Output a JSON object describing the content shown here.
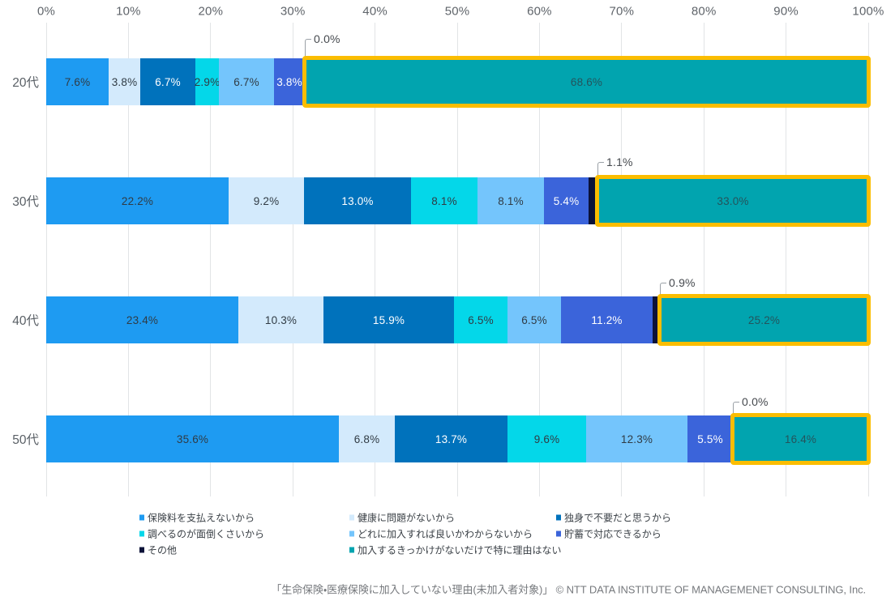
{
  "chart_data": {
    "type": "bar",
    "stacked": true,
    "orientation": "horizontal",
    "unit": "%",
    "categories": [
      "20代",
      "30代",
      "40代",
      "50代"
    ],
    "series": [
      {
        "name": "保険料を支払えないから",
        "color": "#1e9bf2",
        "label_style": "dark",
        "values": [
          7.6,
          22.2,
          23.4,
          35.6
        ]
      },
      {
        "name": "健康に問題がないから",
        "color": "#d3eafc",
        "label_style": "dark",
        "values": [
          3.8,
          9.2,
          10.3,
          6.8
        ]
      },
      {
        "name": "独身で不要だと思うから",
        "color": "#0072bc",
        "label_style": "white",
        "values": [
          6.7,
          13.0,
          15.9,
          13.7
        ]
      },
      {
        "name": "調べるのが面倒くさいから",
        "color": "#04d7e9",
        "label_style": "dark",
        "values": [
          2.9,
          8.1,
          6.5,
          9.6
        ]
      },
      {
        "name": "どれに加入すれば良いかわからないから",
        "color": "#74c5fc",
        "label_style": "dark",
        "values": [
          6.7,
          8.1,
          6.5,
          12.3
        ]
      },
      {
        "name": "貯蓄で対応できるから",
        "color": "#3b64da",
        "label_style": "white",
        "values": [
          3.8,
          5.4,
          11.2,
          5.5
        ]
      },
      {
        "name": "その他",
        "color": "#0b1238",
        "label_style": "none",
        "values": [
          0.0,
          1.1,
          0.9,
          0.0
        ]
      },
      {
        "name": "加入するきっかけがないだけで特に理由はない",
        "color": "#01a4af",
        "label_style": "teal",
        "values": [
          68.6,
          33.0,
          25.2,
          16.4
        ],
        "highlighted": true
      }
    ],
    "x_axis": {
      "min": 0,
      "max": 100,
      "tick_labels": [
        "0%",
        "10%",
        "20%",
        "30%",
        "40%",
        "50%",
        "60%",
        "70%",
        "80%",
        "90%",
        "100%"
      ]
    },
    "annotations": [
      {
        "category": "20代",
        "series": "その他",
        "label": "0.0%"
      },
      {
        "category": "30代",
        "series": "その他",
        "label": "1.1%"
      },
      {
        "category": "40代",
        "series": "その他",
        "label": "0.9%"
      },
      {
        "category": "50代",
        "series": "その他",
        "label": "0.0%"
      }
    ],
    "highlight_color": "#fbbd00",
    "label_colors": {
      "dark": "#303b44",
      "white": "#ffffff",
      "teal": "#24545c"
    },
    "grid": true,
    "legend_position": "bottom",
    "source_note": "「生命保険・医療保険に加入していない理由(未加入者対象)」 © NTT DATA INSTITUTE OF MANAGEMENET CONSULTING, Inc."
  }
}
